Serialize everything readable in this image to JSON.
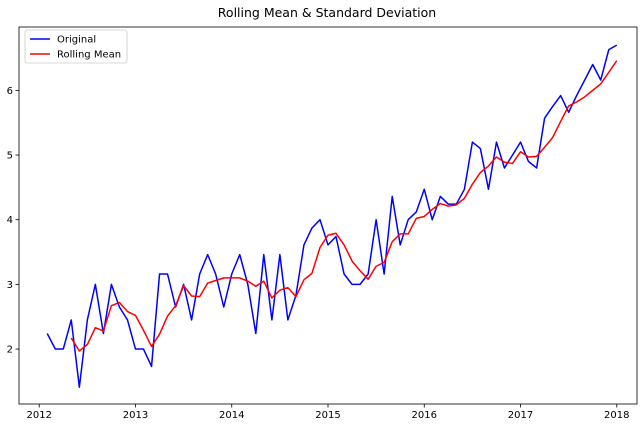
{
  "chart_data": {
    "type": "line",
    "title": "Rolling Mean & Standard Deviation",
    "xlabel": "",
    "ylabel": "",
    "xlim": [
      2011.79,
      2018.21
    ],
    "ylim": [
      1.15,
      6.98
    ],
    "xticks": [
      2012,
      2013,
      2014,
      2015,
      2016,
      2017,
      2018
    ],
    "xtick_labels": [
      "2012",
      "2013",
      "2014",
      "2015",
      "2016",
      "2017",
      "2018"
    ],
    "yticks": [
      2,
      3,
      4,
      5,
      6
    ],
    "ytick_labels": [
      "2",
      "3",
      "4",
      "5",
      "6"
    ],
    "grid": false,
    "legend_position": "top-left",
    "series": [
      {
        "name": "Original",
        "color": "#0000ff",
        "x": [
          2012.083,
          2012.167,
          2012.25,
          2012.333,
          2012.417,
          2012.5,
          2012.583,
          2012.667,
          2012.75,
          2012.833,
          2012.917,
          2013.0,
          2013.083,
          2013.167,
          2013.25,
          2013.333,
          2013.417,
          2013.5,
          2013.583,
          2013.667,
          2013.75,
          2013.833,
          2013.917,
          2014.0,
          2014.083,
          2014.167,
          2014.25,
          2014.333,
          2014.417,
          2014.5,
          2014.583,
          2014.667,
          2014.75,
          2014.833,
          2014.917,
          2015.0,
          2015.083,
          2015.167,
          2015.25,
          2015.333,
          2015.417,
          2015.5,
          2015.583,
          2015.667,
          2015.75,
          2015.833,
          2015.917,
          2016.0,
          2016.083,
          2016.167,
          2016.25,
          2016.333,
          2016.417,
          2016.5,
          2016.583,
          2016.667,
          2016.75,
          2016.833,
          2016.917,
          2017.0,
          2017.083,
          2017.167,
          2017.25,
          2017.333,
          2017.417,
          2017.5,
          2017.583,
          2017.667,
          2017.75,
          2017.833,
          2017.917,
          2018.0
        ],
        "values": [
          2.24,
          2.0,
          2.0,
          2.45,
          1.41,
          2.45,
          3.0,
          2.24,
          3.0,
          2.65,
          2.45,
          2.0,
          2.0,
          1.73,
          3.16,
          3.16,
          2.65,
          3.0,
          2.45,
          3.16,
          3.46,
          3.16,
          2.65,
          3.16,
          3.46,
          3.0,
          2.24,
          3.46,
          2.45,
          3.46,
          2.45,
          2.83,
          3.61,
          3.87,
          4.0,
          3.61,
          3.74,
          3.16,
          3.0,
          3.0,
          3.16,
          4.0,
          3.16,
          4.36,
          3.61,
          4.0,
          4.12,
          4.47,
          4.0,
          4.36,
          4.24,
          4.24,
          4.47,
          5.2,
          5.1,
          4.47,
          5.2,
          4.8,
          5.0,
          5.2,
          4.9,
          4.8,
          5.57,
          5.75,
          5.92,
          5.66,
          5.92,
          6.16,
          6.4,
          6.16,
          6.63,
          6.7
        ]
      },
      {
        "name": "Rolling Mean",
        "color": "#ff0000",
        "x": [
          2012.333,
          2012.417,
          2012.5,
          2012.583,
          2012.667,
          2012.75,
          2012.833,
          2012.917,
          2013.0,
          2013.083,
          2013.167,
          2013.25,
          2013.333,
          2013.417,
          2013.5,
          2013.583,
          2013.667,
          2013.75,
          2013.833,
          2013.917,
          2014.0,
          2014.083,
          2014.167,
          2014.25,
          2014.333,
          2014.417,
          2014.5,
          2014.583,
          2014.667,
          2014.75,
          2014.833,
          2014.917,
          2015.0,
          2015.083,
          2015.167,
          2015.25,
          2015.333,
          2015.417,
          2015.5,
          2015.583,
          2015.667,
          2015.75,
          2015.833,
          2015.917,
          2016.0,
          2016.083,
          2016.167,
          2016.25,
          2016.333,
          2016.417,
          2016.5,
          2016.583,
          2016.667,
          2016.75,
          2016.833,
          2016.917,
          2017.0,
          2017.083,
          2017.167,
          2017.25,
          2017.333,
          2017.417,
          2017.5,
          2017.583,
          2017.667,
          2017.75,
          2017.833,
          2017.917,
          2018.0
        ],
        "values": [
          2.17,
          1.97,
          2.07,
          2.33,
          2.28,
          2.67,
          2.72,
          2.58,
          2.52,
          2.29,
          2.04,
          2.23,
          2.51,
          2.67,
          2.98,
          2.82,
          2.81,
          3.02,
          3.06,
          3.1,
          3.1,
          3.1,
          3.05,
          2.97,
          3.05,
          2.79,
          2.91,
          2.95,
          2.81,
          3.07,
          3.17,
          3.57,
          3.76,
          3.79,
          3.61,
          3.36,
          3.21,
          3.08,
          3.28,
          3.34,
          3.66,
          3.78,
          3.78,
          4.02,
          4.05,
          4.16,
          4.25,
          4.21,
          4.23,
          4.33,
          4.55,
          4.73,
          4.83,
          4.97,
          4.89,
          4.87,
          5.05,
          4.97,
          4.98,
          5.12,
          5.27,
          5.52,
          5.76,
          5.82,
          5.9,
          6.0,
          6.1,
          6.28,
          6.46
        ]
      }
    ]
  }
}
